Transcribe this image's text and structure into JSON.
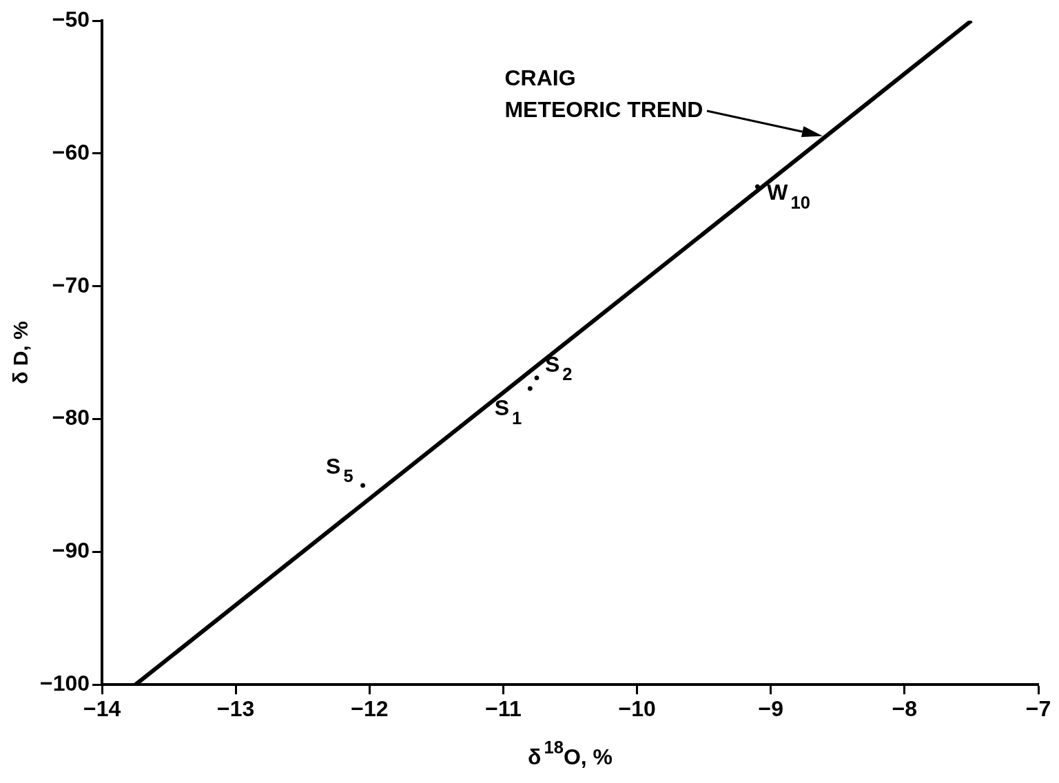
{
  "chart_data": {
    "type": "scatter",
    "xlabel": "δ$^{18}$O, %",
    "ylabel": "δ D, %",
    "xlim": [
      -14,
      -7
    ],
    "xticks": [
      -14,
      -13,
      -12,
      -11,
      -10,
      -9,
      -8,
      -7
    ],
    "ylim": [
      -100,
      -50
    ],
    "yticks": [
      -100,
      -90,
      -80,
      -70,
      -60,
      -50
    ],
    "grid": false,
    "legend": false,
    "marker": "circle",
    "series": [
      {
        "color": "#000000",
        "x": [
          -9.1,
          -10.75,
          -10.8,
          -12.05
        ],
        "values": [
          -62.5,
          -76.9,
          -77.7,
          -85.0
        ]
      },
      {
        "type": "line",
        "color": "#000000",
        "line_style": "solid",
        "marker": "none",
        "x": [
          -13.75,
          -7.5
        ],
        "values": [
          -100,
          -50
        ]
      }
    ],
    "annotations": [
      {
        "text": "W$_{10}$",
        "x": -9.1,
        "y": -62.5
      },
      {
        "text": "S$_{2}$",
        "x": -10.75,
        "y": -76.9
      },
      {
        "text": "S$_{1}$",
        "x": -10.8,
        "y": -77.7
      },
      {
        "text": "S$_{5}$",
        "x": -12.05,
        "y": -85.0
      },
      "CRAIG\nMETEORIC TREND"
    ]
  }
}
